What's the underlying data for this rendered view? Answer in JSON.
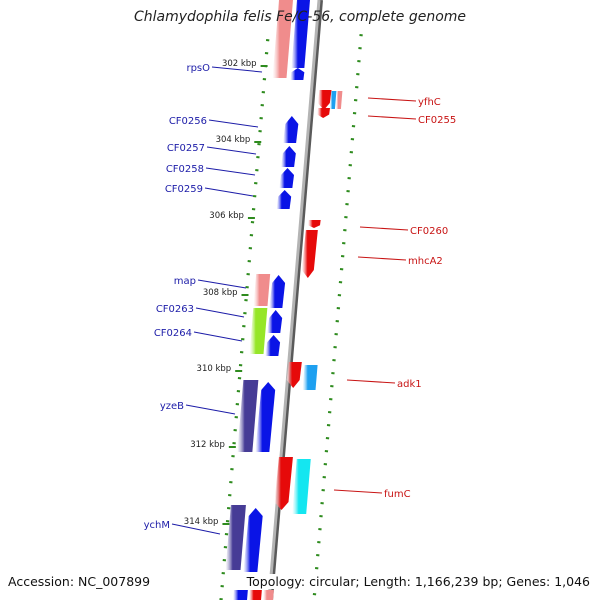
{
  "title": "Chlamydophila felis Fe/C-56, complete genome",
  "footer": {
    "accession": "Accession: NC_007899",
    "summary": "Topology: circular; Length: 1,166,239 bp; Genes: 1,046"
  },
  "colors": {
    "backbone": "#8c8c8c",
    "tick": "#2e8b1e",
    "left_label": "#1c1ca8",
    "right_label": "#c81414",
    "blue_gene": "#0a14e6",
    "red_gene": "#e60a0a",
    "pink_rna": "#f08c8c",
    "lime_rna": "#96e628",
    "cyan_gene": "#14e6f0",
    "skyblue_gene": "#1ea0f0",
    "indigo_gene": "#463c96"
  },
  "scale_labels": [
    {
      "text": "302 kbp",
      "kbp": 302
    },
    {
      "text": "304 kbp",
      "kbp": 304
    },
    {
      "text": "306 kbp",
      "kbp": 306
    },
    {
      "text": "308 kbp",
      "kbp": 308
    },
    {
      "text": "310 kbp",
      "kbp": 310
    },
    {
      "text": "312 kbp",
      "kbp": 312
    },
    {
      "text": "314 kbp",
      "kbp": 314
    }
  ],
  "left_genes": [
    {
      "name": "rpsO"
    },
    {
      "name": "CF0256"
    },
    {
      "name": "CF0257"
    },
    {
      "name": "CF0258"
    },
    {
      "name": "CF0259"
    },
    {
      "name": "map"
    },
    {
      "name": "CF0263"
    },
    {
      "name": "CF0264"
    },
    {
      "name": "yzeB"
    },
    {
      "name": "ychM"
    }
  ],
  "right_genes": [
    {
      "name": "yfhC"
    },
    {
      "name": "CF0255"
    },
    {
      "name": "CF0260"
    },
    {
      "name": "mhcA2"
    },
    {
      "name": "adk1"
    },
    {
      "name": "fumC"
    }
  ]
}
